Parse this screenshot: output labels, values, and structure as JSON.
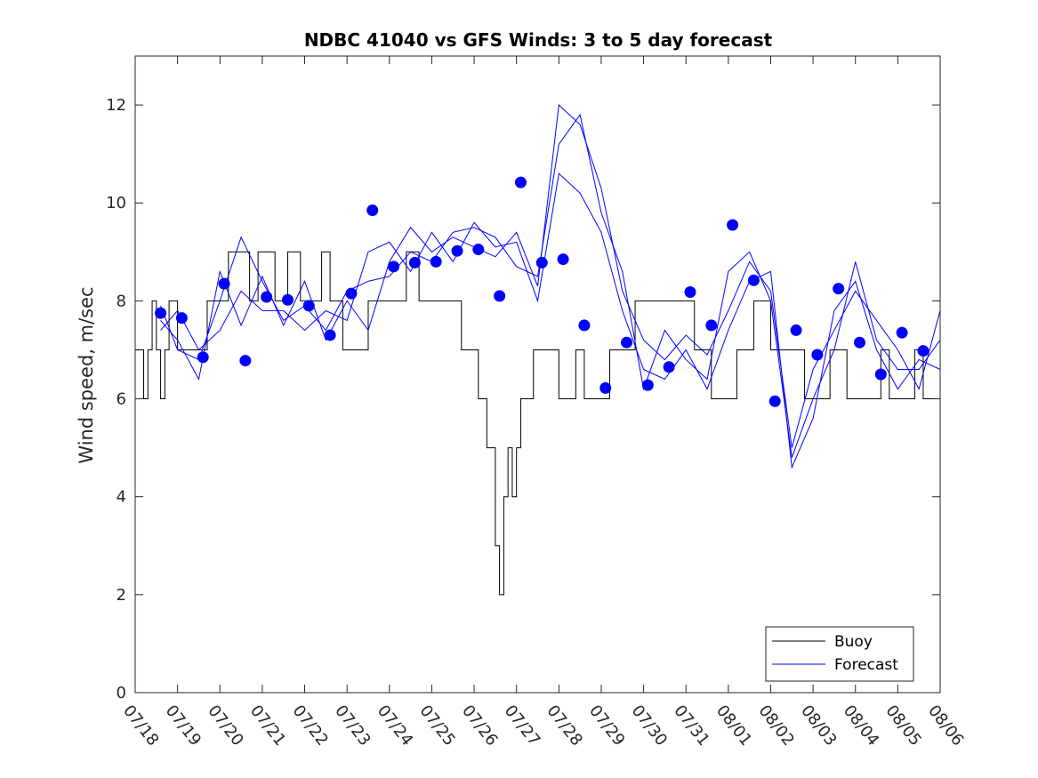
{
  "chart_data": {
    "type": "line",
    "title": "NDBC 41040 vs GFS Winds: 3 to 5 day forecast",
    "xlabel": "",
    "ylabel": "Wind speed, m/sec",
    "x_range_days": [
      0,
      19
    ],
    "ylim": [
      0,
      13
    ],
    "y_ticks": [
      0,
      2,
      4,
      6,
      8,
      10,
      12
    ],
    "x_tick_labels": [
      "07/18",
      "07/19",
      "07/20",
      "07/21",
      "07/22",
      "07/23",
      "07/24",
      "07/25",
      "07/26",
      "07/27",
      "07/28",
      "07/29",
      "07/30",
      "07/31",
      "08/01",
      "08/02",
      "08/03",
      "08/04",
      "08/05",
      "08/06"
    ],
    "grid": false,
    "legend": {
      "placement": "bottom-right",
      "entries": [
        "Buoy",
        "Forecast"
      ]
    },
    "colors": {
      "buoy": "#000000",
      "forecast": "#0000ff",
      "markers": "#0000ff"
    },
    "series": [
      {
        "name": "Buoy",
        "style": "step",
        "x": [
          0.0,
          0.2,
          0.3,
          0.4,
          0.5,
          0.6,
          0.7,
          0.8,
          1.0,
          1.2,
          1.5,
          1.7,
          2.0,
          2.2,
          2.5,
          2.7,
          2.9,
          3.1,
          3.3,
          3.6,
          3.9,
          4.2,
          4.4,
          4.6,
          4.9,
          5.2,
          5.5,
          5.7,
          5.9,
          6.1,
          6.4,
          6.7,
          6.9,
          7.1,
          7.4,
          7.7,
          7.9,
          8.1,
          8.3,
          8.5,
          8.6,
          8.7,
          8.8,
          8.9,
          9.0,
          9.1,
          9.2,
          9.3,
          9.4,
          9.6,
          9.8,
          10.0,
          10.2,
          10.4,
          10.6,
          10.8,
          11.0,
          11.2,
          11.4,
          11.6,
          11.8,
          12.0,
          12.2,
          12.4,
          12.6,
          12.8,
          13.0,
          13.2,
          13.4,
          13.6,
          13.8,
          14.0,
          14.2,
          14.4,
          14.6,
          14.8,
          15.0,
          15.2,
          15.4,
          15.6,
          15.8,
          16.0,
          16.2,
          16.4,
          16.6,
          16.8,
          17.0,
          17.2,
          17.4,
          17.6,
          17.8,
          18.0,
          18.2,
          18.4,
          18.6,
          18.8,
          19.0
        ],
        "values": [
          7,
          6,
          7,
          8,
          7,
          6,
          7,
          8,
          7,
          7,
          7,
          8,
          8,
          9,
          9,
          8,
          9,
          9,
          8,
          9,
          8,
          8,
          9,
          8,
          7,
          7,
          8,
          8,
          8,
          8,
          9,
          8,
          8,
          8,
          8,
          7,
          7,
          6,
          5,
          3,
          2,
          4,
          5,
          4,
          5,
          6,
          6,
          6,
          7,
          7,
          7,
          6,
          6,
          7,
          6,
          6,
          6,
          7,
          7,
          7,
          8,
          8,
          8,
          8,
          8,
          8,
          8,
          7,
          7,
          6,
          6,
          6,
          7,
          7,
          8,
          8,
          7,
          7,
          7,
          7,
          6,
          6,
          6,
          7,
          7,
          6,
          6,
          6,
          6,
          7,
          6,
          6,
          6,
          7,
          6,
          6,
          6
        ]
      },
      {
        "name": "Forecast",
        "x": [
          0.6,
          1.0,
          1.5,
          2.0,
          2.5,
          3.0,
          3.5,
          4.0,
          4.5,
          5.0,
          5.5,
          6.0,
          6.5,
          7.0,
          7.5,
          8.0,
          8.5,
          9.0,
          9.5,
          10.0,
          10.5,
          11.0,
          11.5,
          12.0,
          12.5,
          13.0,
          13.5,
          14.0,
          14.5,
          15.0,
          15.5,
          16.0,
          16.5,
          17.0,
          17.5,
          18.0,
          18.5,
          19.0
        ],
        "values": [
          7.6,
          7.2,
          6.4,
          8.6,
          7.5,
          8.5,
          7.5,
          8.4,
          7.2,
          8.0,
          7.4,
          8.8,
          9.5,
          9.0,
          9.3,
          9.1,
          8.9,
          9.4,
          8.3,
          12.0,
          11.6,
          10.3,
          8.2,
          7.2,
          6.8,
          7.3,
          6.9,
          7.8,
          8.8,
          8.2,
          5.0,
          6.6,
          7.4,
          8.2,
          7.6,
          7.0,
          6.2,
          7.8
        ]
      },
      {
        "name": "Forecast",
        "x": [
          0.6,
          1.0,
          1.5,
          2.0,
          2.5,
          3.0,
          3.5,
          4.0,
          4.5,
          5.0,
          5.5,
          6.0,
          6.5,
          7.0,
          7.5,
          8.0,
          8.5,
          9.0,
          9.5,
          10.0,
          10.5,
          11.0,
          11.5,
          12.0,
          12.5,
          13.0,
          13.5,
          14.0,
          14.5,
          15.0,
          15.5,
          16.0,
          16.5,
          17.0,
          17.5,
          18.0,
          18.5,
          19.0
        ],
        "values": [
          7.9,
          7.0,
          6.8,
          8.0,
          9.3,
          8.4,
          7.6,
          7.9,
          7.4,
          8.2,
          8.4,
          8.5,
          9.0,
          8.8,
          9.4,
          9.5,
          9.3,
          8.7,
          8.5,
          11.2,
          11.8,
          9.8,
          8.6,
          6.2,
          7.4,
          6.8,
          6.4,
          8.6,
          9.0,
          8.0,
          4.8,
          6.0,
          7.0,
          8.8,
          7.2,
          6.6,
          6.6,
          7.2
        ]
      },
      {
        "name": "Forecast",
        "x": [
          0.6,
          1.0,
          1.5,
          2.0,
          2.5,
          3.0,
          3.5,
          4.0,
          4.5,
          5.0,
          5.5,
          6.0,
          6.5,
          7.0,
          7.5,
          8.0,
          8.5,
          9.0,
          9.5,
          10.0,
          10.5,
          11.0,
          11.5,
          12.0,
          12.5,
          13.0,
          13.5,
          14.0,
          14.5,
          15.0,
          15.5,
          16.0,
          16.5,
          17.0,
          17.5,
          18.0,
          18.5,
          19.0
        ],
        "values": [
          7.4,
          7.8,
          7.0,
          7.4,
          8.2,
          7.8,
          7.8,
          7.4,
          7.8,
          7.6,
          9.0,
          9.2,
          8.6,
          9.4,
          8.8,
          9.6,
          9.1,
          9.2,
          8.0,
          10.6,
          10.2,
          9.4,
          7.8,
          6.6,
          6.4,
          7.0,
          6.2,
          7.4,
          8.4,
          8.6,
          4.6,
          5.6,
          7.8,
          8.4,
          7.0,
          6.2,
          6.8,
          6.6
        ]
      }
    ],
    "markers": {
      "name": "Forecast",
      "x": [
        0.6,
        1.1,
        1.6,
        2.1,
        2.6,
        3.1,
        3.6,
        4.1,
        4.6,
        5.1,
        5.6,
        6.1,
        6.6,
        7.1,
        7.6,
        8.1,
        8.6,
        9.1,
        9.6,
        10.1,
        10.6,
        11.1,
        11.6,
        12.1,
        12.6,
        13.1,
        13.6,
        14.1,
        14.6,
        15.1,
        15.6,
        16.1,
        16.6,
        17.1,
        17.6,
        18.1,
        18.6
      ],
      "values": [
        7.75,
        7.65,
        6.85,
        8.35,
        6.78,
        8.08,
        8.02,
        7.9,
        7.3,
        8.15,
        9.85,
        8.7,
        8.78,
        8.8,
        9.02,
        9.05,
        8.1,
        10.42,
        8.78,
        8.85,
        7.5,
        6.22,
        7.15,
        6.28,
        6.65,
        8.18,
        7.5,
        9.55,
        8.42,
        5.95,
        7.4,
        6.9,
        8.25,
        7.15,
        6.5,
        7.35,
        6.98
      ]
    }
  }
}
